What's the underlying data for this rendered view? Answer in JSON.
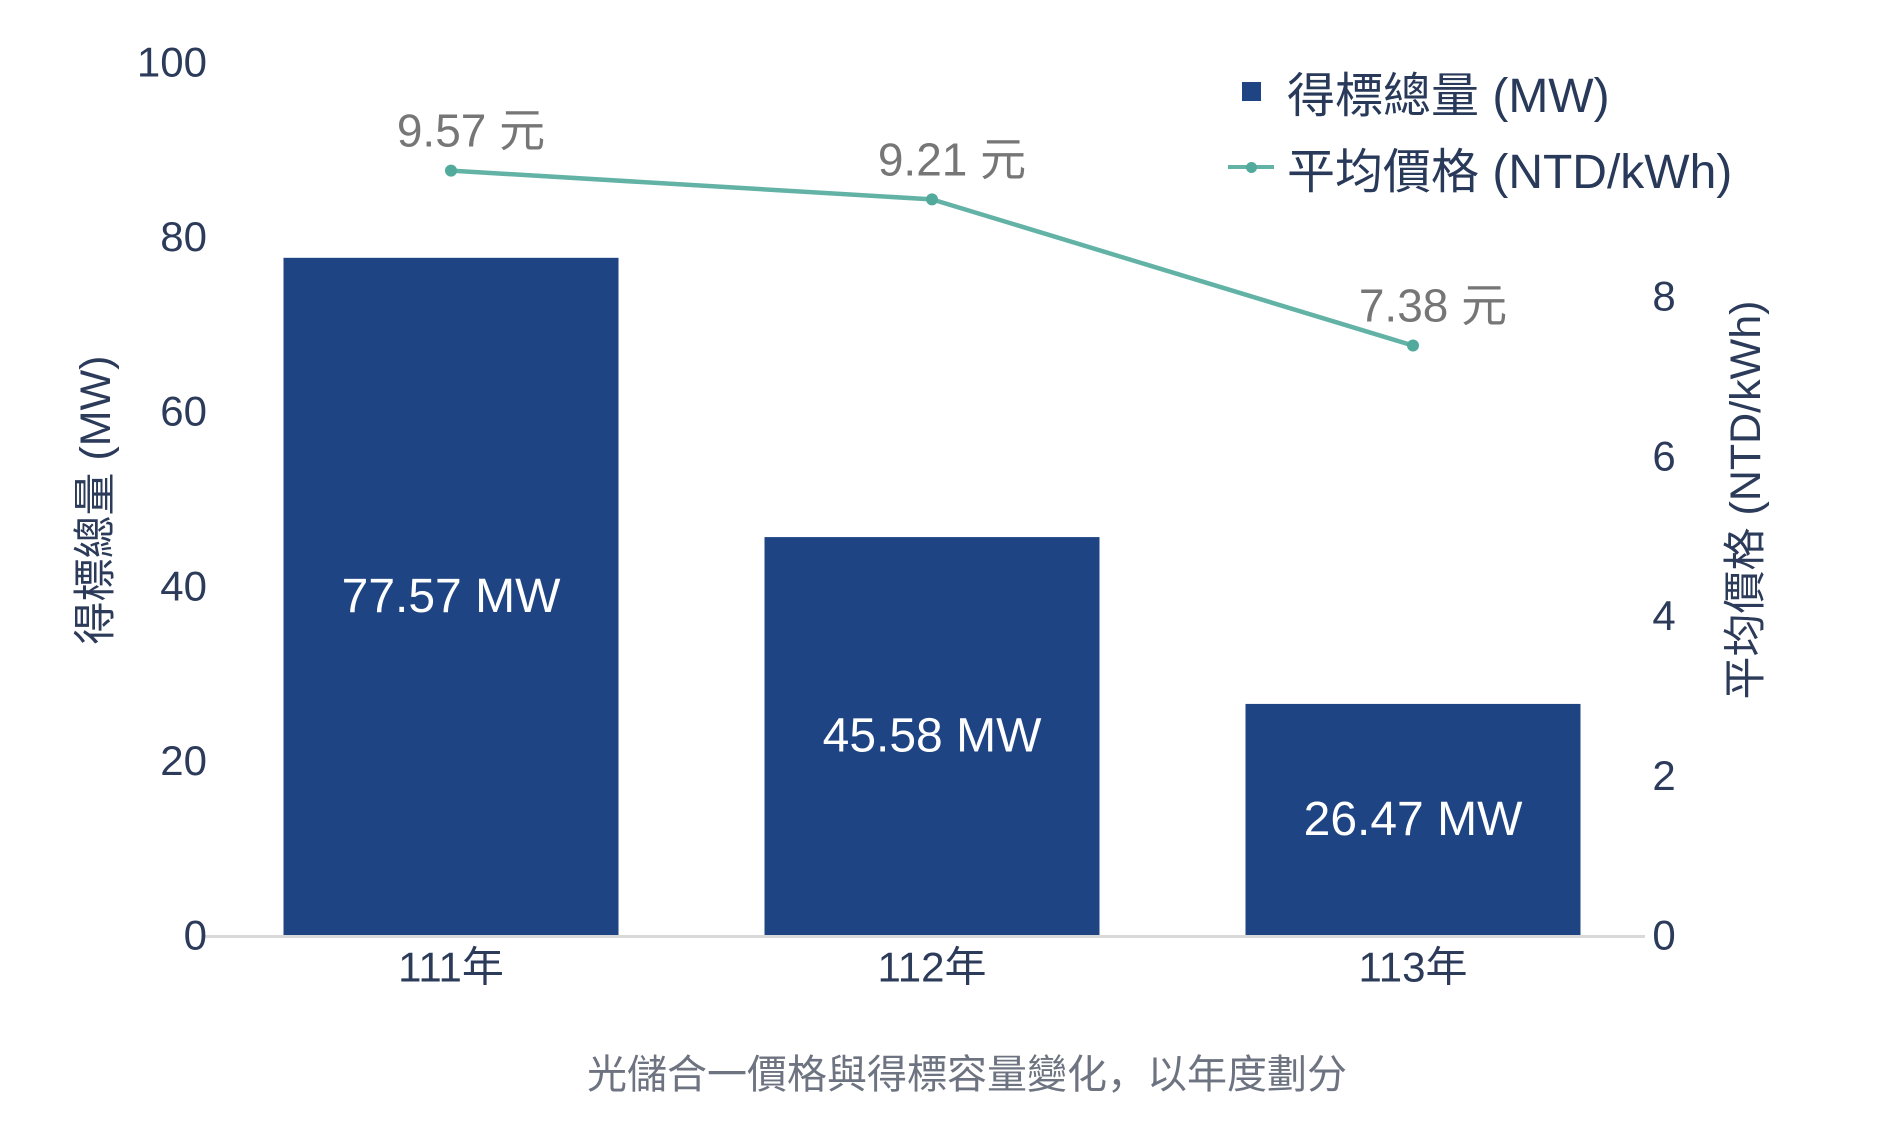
{
  "chart_data": {
    "type": "combo",
    "categories": [
      "111年",
      "112年",
      "113年"
    ],
    "series": [
      {
        "name": "得標總量 (MW)",
        "type": "bar",
        "axis": "left",
        "values": [
          77.57,
          45.58,
          26.47
        ],
        "data_labels": [
          "77.57 MW",
          "45.58 MW",
          "26.47 MW"
        ],
        "color": "#1e4484",
        "label_color": "#ffffff"
      },
      {
        "name": "平均價格 (NTD/kWh)",
        "type": "line",
        "axis": "right",
        "values": [
          9.57,
          9.21,
          7.38
        ],
        "data_labels": [
          "9.57 元",
          "9.21 元",
          "7.38 元"
        ],
        "color": "#62b2a6",
        "marker_color": "#52aa9d",
        "label_color": "#767676"
      }
    ],
    "left_axis": {
      "title": "得標總量 (MW)",
      "min": 0,
      "max": 100,
      "ticks": [
        0,
        20,
        40,
        60,
        80,
        100
      ]
    },
    "right_axis": {
      "title": "平均價格 (NTD/kWh)",
      "min": 0,
      "max": 10.93,
      "ticks": [
        0,
        2,
        4,
        6,
        8
      ]
    },
    "legend": {
      "position": "top-right",
      "entries": [
        {
          "label": "得標總量 (MW)",
          "marker": "square"
        },
        {
          "label": "平均價格 (NTD/kWh)",
          "marker": "line-dot"
        }
      ]
    },
    "caption": "光儲合一價格與得標容量變化，以年度劃分",
    "grid": false,
    "colors": {
      "axis_text": "#2c3b59",
      "legend_text": "#28395a",
      "caption_text": "#6d7380",
      "baseline": "#d9d9d9",
      "background": "#ffffff"
    }
  }
}
